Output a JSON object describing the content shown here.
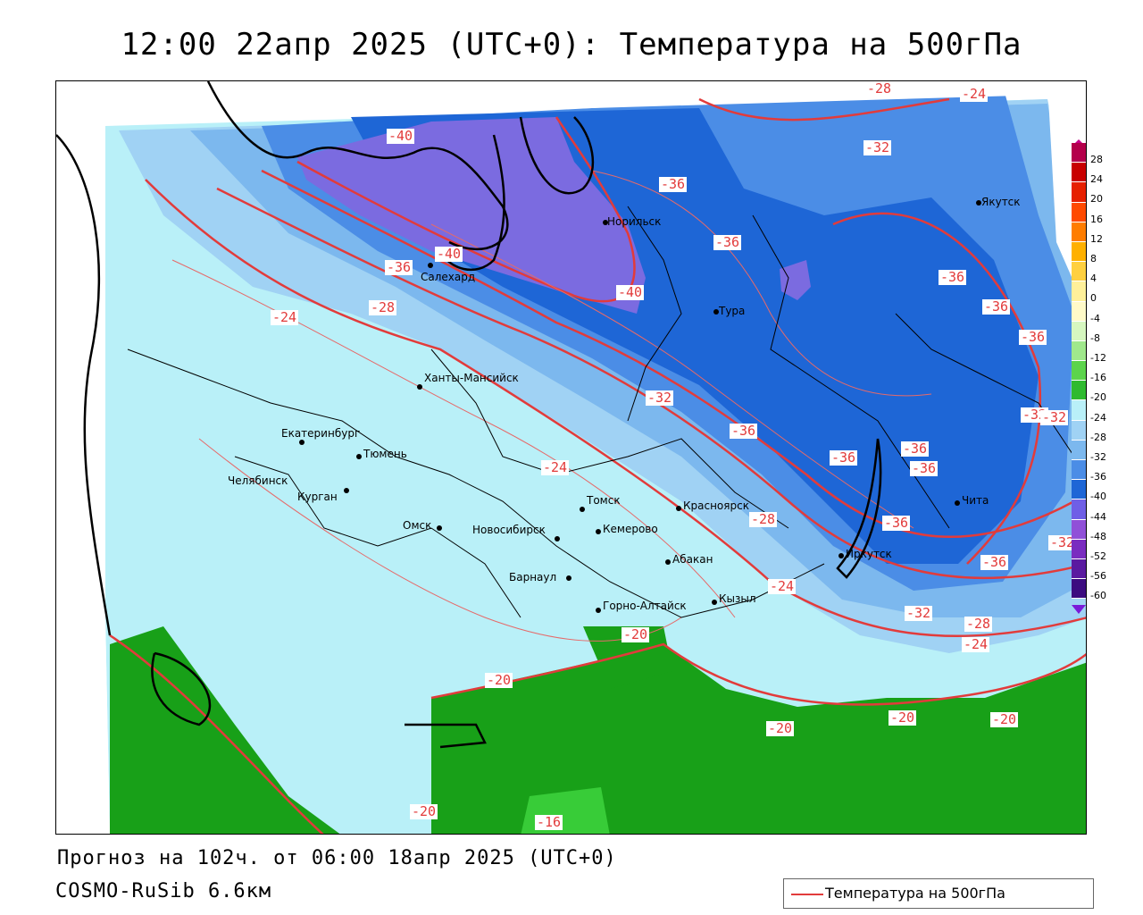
{
  "header": {
    "title": "12:00 22апр 2025 (UTC+0): Температура на 500гПа"
  },
  "footer": {
    "forecast": "Прогноз на 102ч. от 06:00 18апр 2025 (UTC+0)",
    "model": "COSMO-RuSib 6.6км"
  },
  "legend": {
    "label": "Температура на 500гПа",
    "line_color": "#e23b3b"
  },
  "colorbar": {
    "labels": [
      "28",
      "24",
      "20",
      "16",
      "12",
      "8",
      "4",
      "0",
      "-4",
      "-8",
      "-12",
      "-16",
      "-20",
      "-24",
      "-28",
      "-32",
      "-36",
      "-40",
      "-44",
      "-48",
      "-52",
      "-56",
      "-60"
    ],
    "colors": [
      "#b4004b",
      "#c80000",
      "#e62000",
      "#ff4a00",
      "#ff7d00",
      "#ffb000",
      "#ffd040",
      "#fff09a",
      "#fffac8",
      "#d6f7c0",
      "#a0e88c",
      "#5cd44c",
      "#2fba2f",
      "#b9f0f8",
      "#a0d2f4",
      "#7cb8ee",
      "#4b8de6",
      "#1e66d6",
      "#6f5fe6",
      "#9050d8",
      "#7a2cc0",
      "#5a1aa0",
      "#3c0c80"
    ]
  },
  "cities": [
    {
      "name": "Норильск"
    },
    {
      "name": "Якутск"
    },
    {
      "name": "Салехард"
    },
    {
      "name": "Тура"
    },
    {
      "name": "Ханты-Мансийск"
    },
    {
      "name": "Екатеринбург"
    },
    {
      "name": "Тюмень"
    },
    {
      "name": "Челябинск"
    },
    {
      "name": "Курган"
    },
    {
      "name": "Омск"
    },
    {
      "name": "Новосибирск"
    },
    {
      "name": "Томск"
    },
    {
      "name": "Кемерово"
    },
    {
      "name": "Красноярск"
    },
    {
      "name": "Абакан"
    },
    {
      "name": "Барнаул"
    },
    {
      "name": "Горно-Алтайск"
    },
    {
      "name": "Кызыл"
    },
    {
      "name": "Иркутск"
    },
    {
      "name": "Чита"
    }
  ],
  "contour_labels": [
    "-40",
    "-24",
    "-32",
    "-36",
    "-36",
    "-40",
    "-36",
    "-40",
    "-28",
    "-24",
    "-36",
    "-36",
    "-32",
    "-32",
    "-32",
    "-36",
    "-24",
    "-36",
    "-36",
    "-36",
    "-28",
    "-36",
    "-36",
    "-32",
    "-36",
    "-24",
    "-32",
    "-28",
    "-24",
    "-20",
    "-20",
    "-20",
    "-20",
    "-20",
    "-20",
    "-16",
    "-28"
  ]
}
